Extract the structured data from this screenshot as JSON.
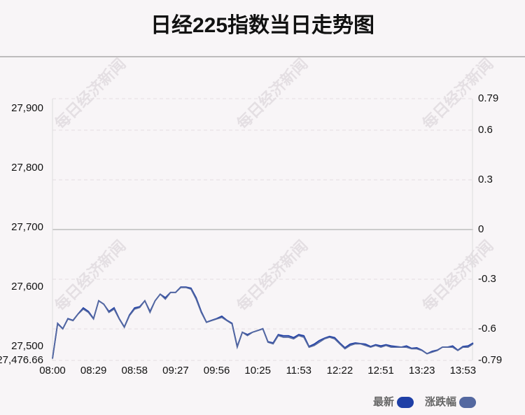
{
  "chart_data": {
    "type": "line",
    "title": "日经225指数当日走势图",
    "watermark": "每日经济新闻",
    "categories": [
      "08:00",
      null,
      null,
      null,
      null,
      null,
      null,
      null,
      "08:29",
      null,
      null,
      null,
      null,
      null,
      null,
      null,
      "08:58",
      null,
      null,
      null,
      null,
      null,
      null,
      null,
      "09:27",
      null,
      null,
      null,
      null,
      null,
      null,
      null,
      "09:56",
      null,
      null,
      null,
      null,
      null,
      null,
      null,
      "10:25",
      null,
      null,
      null,
      null,
      null,
      null,
      null,
      "11:53",
      null,
      null,
      null,
      null,
      null,
      null,
      null,
      "12:22",
      null,
      null,
      null,
      null,
      null,
      null,
      null,
      "12:51",
      null,
      null,
      null,
      null,
      null,
      null,
      null,
      "13:23",
      null,
      null,
      null,
      null,
      null,
      null,
      null,
      "13:53",
      null,
      null
    ],
    "series": [
      {
        "name": "最新",
        "color": "#1f3fa6",
        "values": [
          27480,
          27539,
          27530,
          27547,
          27544,
          27555,
          27565,
          27559,
          27547,
          27577,
          27571,
          27559,
          27565,
          27547,
          27533,
          27553,
          27565,
          27567,
          27577,
          27559,
          27577,
          27588,
          27582,
          27591,
          27591,
          27600,
          27600,
          27598,
          27582,
          27559,
          27541,
          27544,
          27547,
          27551,
          27544,
          27539,
          27500,
          27524,
          27520,
          27524,
          27527,
          27530,
          27508,
          27506,
          27520,
          27518,
          27518,
          27515,
          27520,
          27518,
          27500,
          27504,
          27510,
          27514,
          27517,
          27515,
          27506,
          27498,
          27504,
          27506,
          27505,
          27504,
          27500,
          27503,
          27501,
          27503,
          27501,
          27500,
          27499,
          27501,
          27497,
          27498,
          27494,
          27488,
          27492,
          27494,
          27499,
          27499,
          27501,
          27494,
          27500,
          27501,
          27506
        ]
      },
      {
        "name": "涨跌幅",
        "color": "#5468a0",
        "axis": "y2",
        "values": [
          -0.78,
          -0.57,
          -0.6,
          -0.54,
          -0.55,
          -0.51,
          -0.48,
          -0.5,
          -0.54,
          -0.43,
          -0.45,
          -0.5,
          -0.48,
          -0.54,
          -0.59,
          -0.52,
          -0.48,
          -0.47,
          -0.43,
          -0.5,
          -0.43,
          -0.39,
          -0.42,
          -0.38,
          -0.38,
          -0.35,
          -0.35,
          -0.36,
          -0.42,
          -0.5,
          -0.56,
          -0.55,
          -0.54,
          -0.53,
          -0.55,
          -0.57,
          -0.71,
          -0.62,
          -0.64,
          -0.62,
          -0.61,
          -0.6,
          -0.68,
          -0.69,
          -0.64,
          -0.65,
          -0.65,
          -0.66,
          -0.64,
          -0.65,
          -0.71,
          -0.7,
          -0.68,
          -0.66,
          -0.65,
          -0.66,
          -0.69,
          -0.72,
          -0.7,
          -0.69,
          -0.69,
          -0.7,
          -0.71,
          -0.7,
          -0.71,
          -0.7,
          -0.71,
          -0.71,
          -0.71,
          -0.71,
          -0.72,
          -0.72,
          -0.73,
          -0.75,
          -0.74,
          -0.73,
          -0.71,
          -0.71,
          -0.71,
          -0.73,
          -0.71,
          -0.71,
          -0.69
        ]
      }
    ],
    "ylim": [
      27476.66,
      27916.4
    ],
    "yticks": [
      {
        "value": 27476.66,
        "label": "27,476.66"
      },
      {
        "value": 27500,
        "label": "27,500"
      },
      {
        "value": 27600,
        "label": "27,600"
      },
      {
        "value": 27700,
        "label": "27,700"
      },
      {
        "value": 27800,
        "label": "27,800"
      },
      {
        "value": 27900,
        "label": "27,900"
      }
    ],
    "y2lim": [
      -0.79,
      0.79
    ],
    "y2ticks": [
      -0.79,
      -0.6,
      -0.3,
      0,
      0.3,
      0.6,
      0.79
    ],
    "grid": true,
    "legend": "bottom-right"
  }
}
